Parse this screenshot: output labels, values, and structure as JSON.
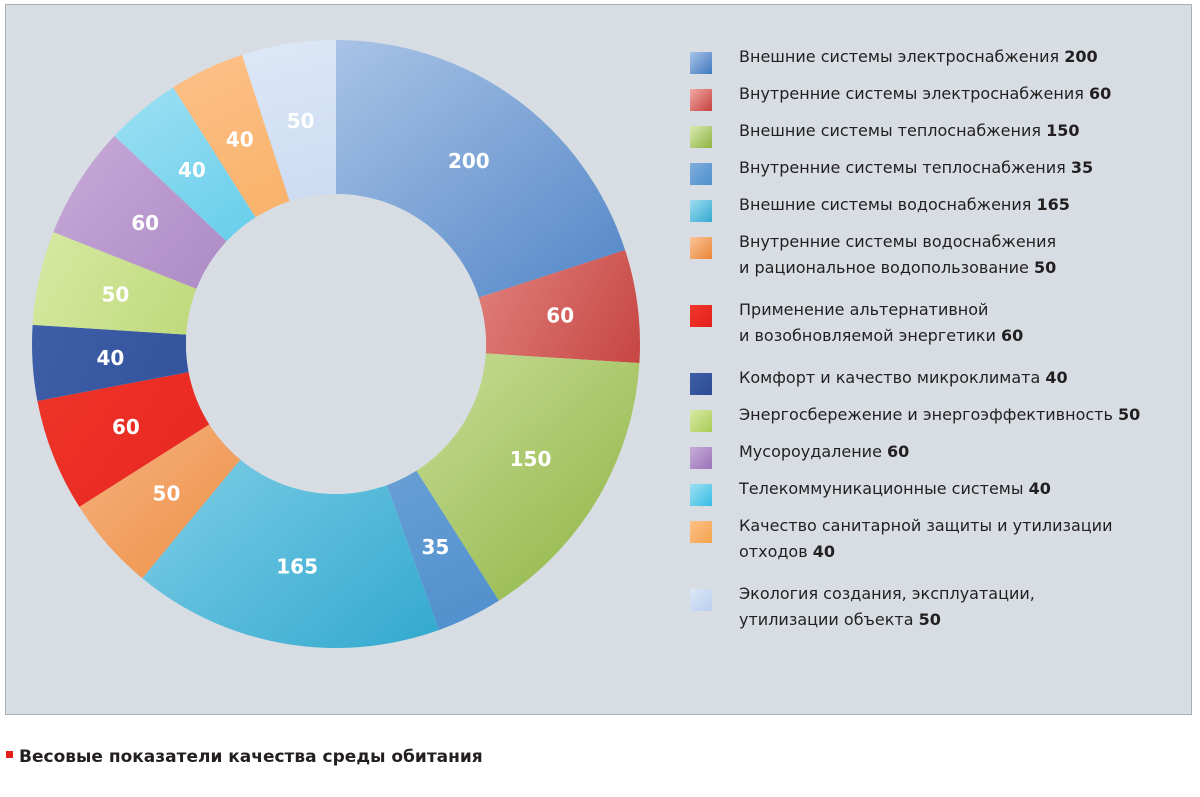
{
  "chart_data": {
    "type": "pie",
    "donut": true,
    "title": "Весовые показатели качества среды обитания",
    "legend_position": "right",
    "slices": [
      {
        "name": [
          "Внешние системы электроснабжения"
        ],
        "value": 200,
        "label": "200",
        "color_light": "#a9c3e6",
        "color_dark": "#3f79c0"
      },
      {
        "name": [
          "Внутренние системы электроснабжения"
        ],
        "value": 60,
        "label": "60",
        "color_light": "#f2a9a6",
        "color_dark": "#c4403c"
      },
      {
        "name": [
          "Внешние системы теплоснабжения"
        ],
        "value": 150,
        "label": "150",
        "color_light": "#dbe9b2",
        "color_dark": "#8db441"
      },
      {
        "name": [
          "Внутренние системы теплоснабжения"
        ],
        "value": 35,
        "label": "35",
        "color_light": "#80aedb",
        "color_dark": "#4f8fcd"
      },
      {
        "name": [
          "Внешние системы водоснабжения"
        ],
        "value": 165,
        "label": "165",
        "color_light": "#9ddcf1",
        "color_dark": "#35aacf"
      },
      {
        "name": [
          "Внутренние системы водоснабжения",
          "и рациональное водопользование"
        ],
        "value": 50,
        "label": "50",
        "color_light": "#fbc398",
        "color_dark": "#ea8638"
      },
      {
        "name": [
          "Применение альтернативной",
          "и возобновляемой энергетики"
        ],
        "value": 60,
        "label": "60",
        "color_light": "#f0382c",
        "color_dark": "#e3201b"
      },
      {
        "name": [
          "Комфорт и качество микроклимата"
        ],
        "value": 40,
        "label": "40",
        "color_light": "#3e60a8",
        "color_dark": "#2c4a94"
      },
      {
        "name": [
          "Энергосбережение и энергоэффективность"
        ],
        "value": 50,
        "label": "50",
        "color_light": "#d8e9a4",
        "color_dark": "#a9cc57"
      },
      {
        "name": [
          "Мусороудаление"
        ],
        "value": 60,
        "label": "60",
        "color_light": "#c8aad8",
        "color_dark": "#9a74b8"
      },
      {
        "name": [
          "Телекоммуникационные системы"
        ],
        "value": 40,
        "label": "40",
        "color_light": "#9ee0f3",
        "color_dark": "#36bde3"
      },
      {
        "name": [
          "Качество санитарной защиты и утилизации",
          "отходов"
        ],
        "value": 40,
        "label": "40",
        "color_light": "#fcc188",
        "color_dark": "#f6a24c"
      },
      {
        "name": [
          "Экология создания, эксплуатации,",
          "утилизации объекта"
        ],
        "value": 50,
        "label": "50",
        "color_light": "#dde8f7",
        "color_dark": "#b8cdee"
      }
    ]
  },
  "colors": {
    "panel_background": "#d7dde3",
    "panel_border": "#a8b0b8",
    "caption_bullet": "#e3201b"
  }
}
